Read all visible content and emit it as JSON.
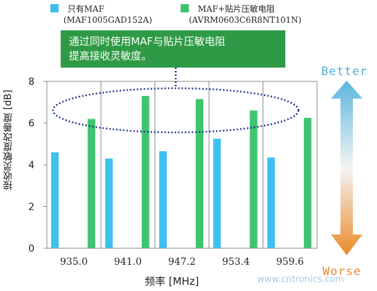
{
  "chart_data": {
    "type": "bar",
    "categories": [
      "935.0",
      "941.0",
      "947.2",
      "953.4",
      "959.6"
    ],
    "series": [
      {
        "name": "只有MAF",
        "part": "(MAF1005GAD152A)",
        "color": "#3ec0ee",
        "values": [
          4.6,
          4.3,
          4.65,
          5.25,
          4.35
        ]
      },
      {
        "name": "MAF+贴片压敏电阻",
        "part": "(AVRM0603C6R8NT101N)",
        "color": "#3fc46f",
        "values": [
          6.2,
          7.3,
          7.15,
          6.6,
          6.25
        ]
      }
    ],
    "ylim": [
      0,
      8
    ],
    "yticks": [
      0,
      2,
      4,
      6,
      8
    ],
    "xlabel": "频率 [MHz]",
    "ylabel": "接收灵敏度改善度 [dB]",
    "grid": true,
    "legend_position": "top"
  },
  "callout": {
    "text_line1": "通过同时使用MAF与贴片压敏电阻",
    "text_line2": "提高接收灵敏度。",
    "color": "#2e9a45"
  },
  "scale": {
    "top_label": "Better",
    "bottom_label": "Worse",
    "top_color": "#4fb0d6",
    "bottom_color": "#e9892d"
  },
  "watermark": "www.cntronics.com"
}
